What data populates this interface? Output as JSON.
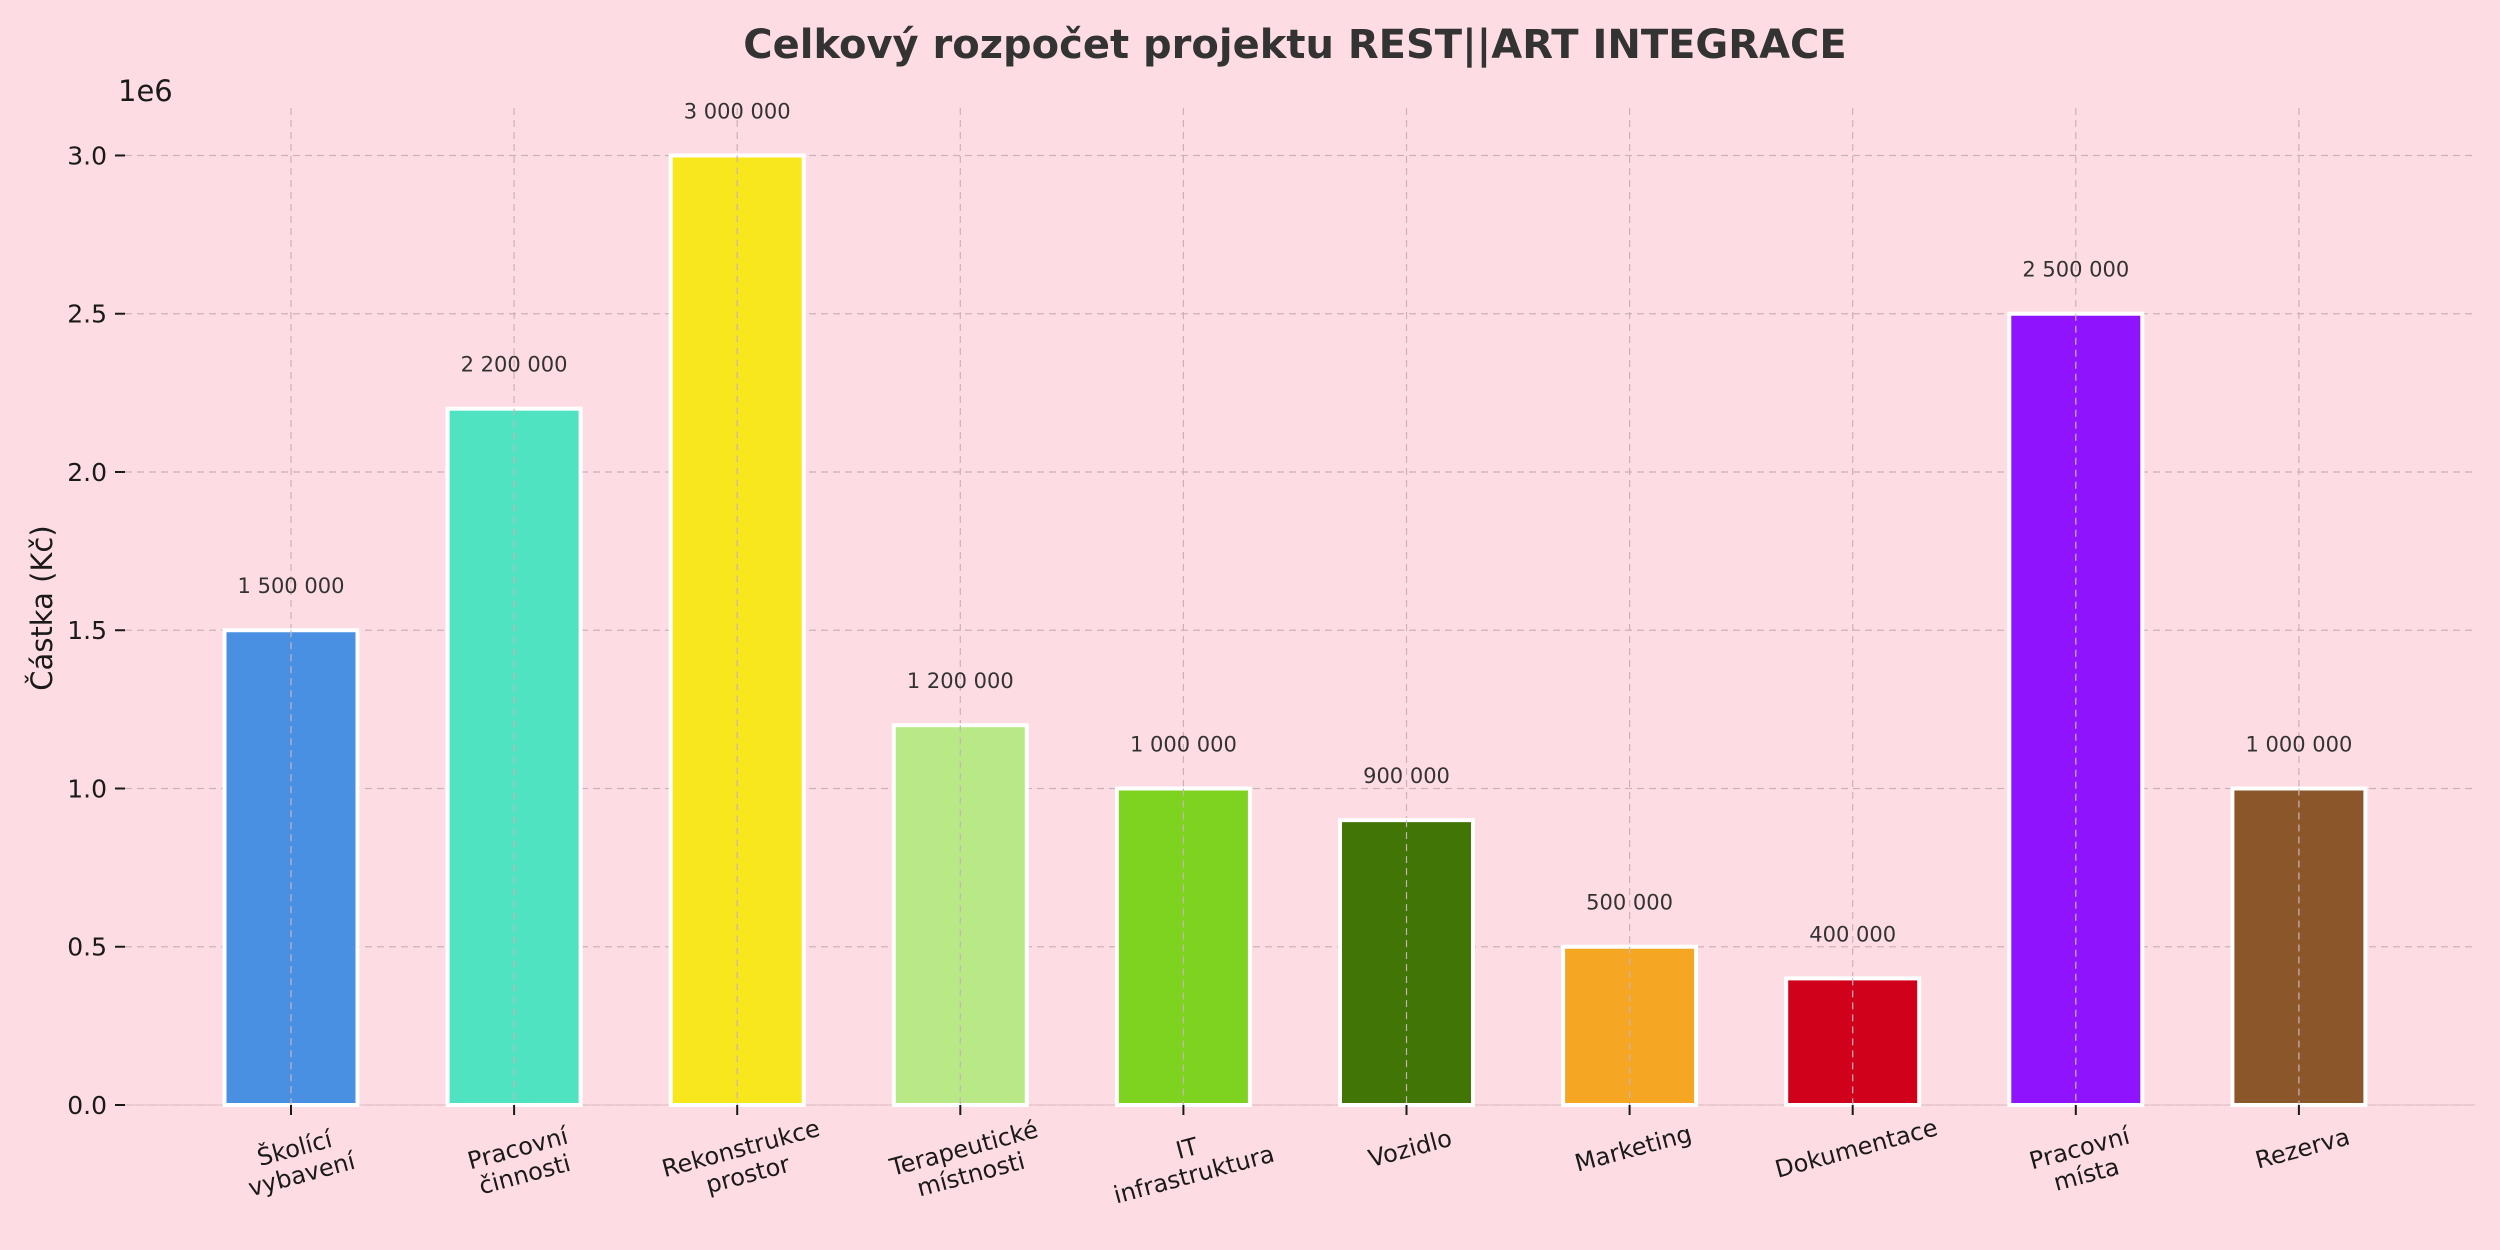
{
  "chart_data": {
    "type": "bar",
    "title": "Celkový rozpočet projektu REST||ART INTEGRACE",
    "ylabel": "Částka (Kč)",
    "y_offset_label": "1e6",
    "ylim": [
      0,
      3150000
    ],
    "grid": true,
    "y_ticks": [
      {
        "value": 0,
        "label": "0.0"
      },
      {
        "value": 500000,
        "label": "0.5"
      },
      {
        "value": 1000000,
        "label": "1.0"
      },
      {
        "value": 1500000,
        "label": "1.5"
      },
      {
        "value": 2000000,
        "label": "2.0"
      },
      {
        "value": 2500000,
        "label": "2.5"
      },
      {
        "value": 3000000,
        "label": "3.0"
      }
    ],
    "categories": [
      [
        "Školící",
        "vybavení"
      ],
      [
        "Pracovní",
        "činnosti"
      ],
      [
        "Rekonstrukce",
        "prostor"
      ],
      [
        "Terapeutické",
        "místnosti"
      ],
      [
        "IT",
        "infrastruktura"
      ],
      [
        "Vozidlo"
      ],
      [
        "Marketing"
      ],
      [
        "Dokumentace"
      ],
      [
        "Pracovní",
        "místa"
      ],
      [
        "Rezerva"
      ]
    ],
    "values": [
      1500000,
      2200000,
      3000000,
      1200000,
      1000000,
      900000,
      500000,
      400000,
      2500000,
      1000000
    ],
    "data_labels": [
      "1 500 000",
      "2 200 000",
      "3 000 000",
      "1 200 000",
      "1 000 000",
      "900 000",
      "500 000",
      "400 000",
      "2 500 000",
      "1 000 000"
    ],
    "colors": [
      "#4a90e2",
      "#50e3c2",
      "#f8e71c",
      "#b8e986",
      "#7ed321",
      "#417505",
      "#f5a623",
      "#d0021b",
      "#9013fe",
      "#8b572a"
    ],
    "background": "#fddde3"
  }
}
